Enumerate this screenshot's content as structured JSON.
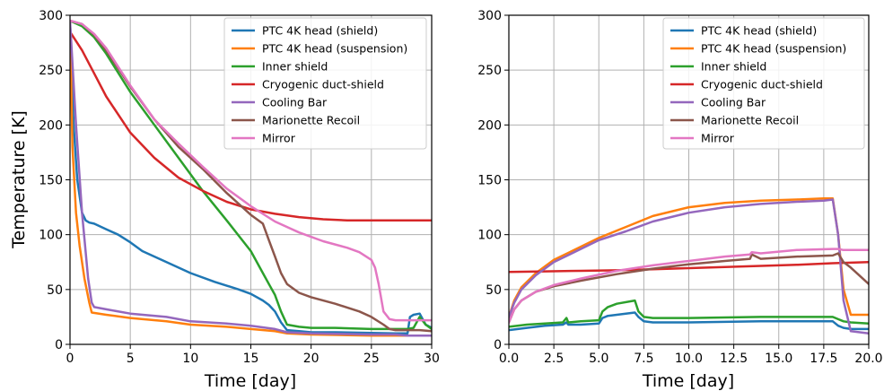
{
  "chart_data": [
    {
      "type": "line",
      "xlabel": "Time [day]",
      "ylabel": "Temperature [K]",
      "xlim": [
        0,
        30
      ],
      "ylim": [
        0,
        300
      ],
      "xticks": [
        0,
        5,
        10,
        15,
        20,
        25,
        30
      ],
      "yticks": [
        0,
        50,
        100,
        150,
        200,
        250,
        300
      ],
      "xtick_labels": [
        "0",
        "5",
        "10",
        "15",
        "20",
        "25",
        "30"
      ],
      "ytick_labels": [
        "0",
        "50",
        "100",
        "150",
        "200",
        "250",
        "300"
      ],
      "grid": true,
      "legend_position": "top-right",
      "series": [
        {
          "name": "PTC 4K head (shield)",
          "color": "#1f77b4",
          "x": [
            0,
            0.3,
            0.6,
            1,
            1.3,
            1.6,
            2,
            3,
            4,
            5,
            6,
            8,
            10,
            12,
            14,
            15,
            16,
            16.5,
            17,
            17.5,
            18,
            19,
            20,
            22,
            25,
            27,
            28,
            28.2,
            28.5,
            29,
            29.5,
            30
          ],
          "y": [
            295,
            200,
            150,
            120,
            113,
            111,
            110,
            105,
            100,
            93,
            85,
            75,
            65,
            57,
            50,
            46,
            40,
            36,
            30,
            20,
            13,
            12,
            11,
            11,
            10.5,
            10,
            10,
            25,
            27,
            28,
            18,
            15
          ]
        },
        {
          "name": "PTC 4K head (suspension)",
          "color": "#ff7f0e",
          "x": [
            0,
            0.2,
            0.5,
            0.8,
            1.2,
            1.6,
            1.8,
            3,
            5,
            8,
            10,
            13,
            15,
            17,
            18,
            20,
            25,
            28,
            29,
            30
          ],
          "y": [
            295,
            180,
            120,
            90,
            60,
            38,
            29,
            27,
            24,
            21,
            18,
            16,
            14,
            12,
            10,
            9,
            8,
            8,
            8,
            8
          ]
        },
        {
          "name": "Inner shield",
          "color": "#2ca02c",
          "x": [
            0,
            1,
            2,
            3,
            5,
            7,
            9,
            11,
            13,
            15,
            16,
            16.5,
            17,
            17.5,
            18,
            19,
            20,
            22,
            25,
            28,
            28.5,
            29,
            29.5,
            30
          ],
          "y": [
            295,
            290,
            280,
            265,
            230,
            200,
            170,
            140,
            113,
            85,
            65,
            55,
            45,
            30,
            18,
            16,
            15,
            15,
            14,
            14,
            15,
            25,
            18,
            14
          ]
        },
        {
          "name": "Cryogenic duct-shield",
          "color": "#d62728",
          "x": [
            0,
            1,
            2,
            3,
            5,
            7,
            9,
            11,
            13,
            15,
            17,
            19,
            21,
            23,
            25,
            27,
            30
          ],
          "y": [
            285,
            268,
            247,
            226,
            193,
            170,
            152,
            140,
            130,
            123,
            119,
            116,
            114,
            113,
            113,
            113,
            113
          ]
        },
        {
          "name": "Cooling Bar",
          "color": "#9467bd",
          "x": [
            0,
            0.5,
            1,
            1.5,
            1.8,
            2,
            3,
            5,
            8,
            10,
            13,
            15,
            17,
            18,
            20,
            25,
            27,
            28,
            29,
            30
          ],
          "y": [
            295,
            200,
            120,
            60,
            38,
            34,
            32,
            28,
            25,
            21,
            19,
            17,
            14,
            11,
            10,
            9,
            9,
            8,
            8,
            8
          ]
        },
        {
          "name": "Marionette Recoil",
          "color": "#8c564b",
          "x": [
            0,
            1,
            2,
            3,
            5,
            7,
            9,
            11,
            13,
            15,
            16,
            16.5,
            17,
            17.5,
            18,
            19,
            20,
            22,
            24,
            25,
            26,
            26.5,
            27,
            28,
            29,
            30
          ],
          "y": [
            295,
            292,
            282,
            268,
            235,
            205,
            180,
            160,
            138,
            118,
            110,
            95,
            80,
            65,
            55,
            47,
            43,
            37,
            30,
            25,
            18,
            14,
            13,
            13,
            13,
            12
          ]
        },
        {
          "name": "Mirror",
          "color": "#e377c2",
          "x": [
            0,
            1,
            2,
            3,
            5,
            7,
            9,
            11,
            13,
            15,
            17,
            19,
            21,
            23,
            24,
            25,
            25.3,
            25.6,
            26,
            26.5,
            27,
            28,
            30
          ],
          "y": [
            295,
            292,
            283,
            270,
            236,
            205,
            183,
            162,
            142,
            126,
            112,
            102,
            94,
            88,
            84,
            77,
            70,
            55,
            30,
            23,
            22,
            22,
            22
          ]
        }
      ]
    },
    {
      "type": "line",
      "xlabel": "Time [day]",
      "ylabel": "",
      "xlim": [
        0,
        20
      ],
      "ylim": [
        0,
        300
      ],
      "xticks": [
        0,
        2.5,
        5,
        7.5,
        10,
        12.5,
        15,
        17.5,
        20
      ],
      "yticks": [
        0,
        50,
        100,
        150,
        200,
        250,
        300
      ],
      "xtick_labels": [
        "0.0",
        "2.5",
        "5.0",
        "7.5",
        "10.0",
        "12.5",
        "15.0",
        "17.5",
        "20.0"
      ],
      "ytick_labels": [
        "0",
        "50",
        "100",
        "150",
        "200",
        "250",
        "300"
      ],
      "grid": true,
      "legend_position": "top-right",
      "series": [
        {
          "name": "PTC 4K head (shield)",
          "color": "#1f77b4",
          "x": [
            0,
            1,
            2,
            3,
            3.2,
            3.3,
            4,
            5,
            5.2,
            5.5,
            6,
            7,
            7.2,
            7.5,
            8,
            10,
            12,
            14,
            16,
            18,
            18.3,
            18.6,
            19,
            20
          ],
          "y": [
            13,
            15,
            17,
            18,
            20,
            18,
            18,
            19,
            24,
            26,
            27,
            29,
            25,
            21,
            20,
            20,
            20.5,
            21,
            21,
            21,
            17,
            15,
            14,
            14
          ]
        },
        {
          "name": "PTC 4K head (suspension)",
          "color": "#ff7f0e",
          "x": [
            0,
            0.3,
            0.7,
            1.5,
            2.5,
            3.5,
            5,
            6.5,
            8,
            10,
            12,
            14,
            16,
            17.5,
            18,
            18.3,
            18.6,
            19,
            20
          ],
          "y": [
            25,
            40,
            52,
            65,
            77,
            85,
            97,
            107,
            117,
            125,
            129,
            131,
            132,
            133,
            133,
            100,
            50,
            27,
            27
          ]
        },
        {
          "name": "Inner shield",
          "color": "#2ca02c",
          "x": [
            0,
            1,
            2,
            3,
            3.2,
            3.3,
            4,
            5,
            5.2,
            5.5,
            6,
            7,
            7.2,
            7.5,
            8,
            10,
            12,
            14,
            16,
            18,
            18.3,
            18.6,
            19,
            20
          ],
          "y": [
            16,
            18,
            19,
            20,
            24,
            20,
            21,
            22,
            30,
            34,
            37,
            40,
            30,
            25,
            24,
            24,
            24.5,
            25,
            25,
            25,
            23,
            21,
            20,
            19
          ]
        },
        {
          "name": "Cryogenic duct-shield",
          "color": "#d62728",
          "x": [
            0,
            2,
            4,
            6,
            8,
            10,
            12,
            14,
            16,
            18,
            20
          ],
          "y": [
            66,
            66.5,
            67,
            67.5,
            68.5,
            69.5,
            70.5,
            71.5,
            72.5,
            74,
            75
          ]
        },
        {
          "name": "Cooling Bar",
          "color": "#9467bd",
          "x": [
            0,
            0.3,
            0.7,
            1.5,
            2.5,
            3.5,
            5,
            6.5,
            8,
            10,
            12,
            14,
            16,
            17.5,
            18,
            18.3,
            18.6,
            19,
            20
          ],
          "y": [
            25,
            38,
            50,
            63,
            75,
            83,
            95,
            103,
            112,
            120,
            125,
            128,
            130,
            131,
            132,
            100,
            40,
            12,
            10
          ]
        },
        {
          "name": "Marionette Recoil",
          "color": "#8c564b",
          "x": [
            0,
            0.3,
            0.7,
            1.5,
            2.5,
            4,
            6,
            8,
            10,
            12,
            13.4,
            13.5,
            14,
            16,
            18,
            18.3,
            18.6,
            19,
            20
          ],
          "y": [
            20,
            32,
            40,
            48,
            53,
            58,
            64,
            69,
            73,
            76,
            78,
            82,
            78,
            80,
            81,
            83,
            75,
            70,
            55
          ]
        },
        {
          "name": "Mirror",
          "color": "#e377c2",
          "x": [
            0,
            0.3,
            0.7,
            1.5,
            2.5,
            4,
            6,
            8,
            10,
            12,
            13.4,
            13.5,
            14,
            16,
            18,
            18.3,
            18.6,
            19,
            20
          ],
          "y": [
            20,
            32,
            40,
            48,
            54,
            60,
            67,
            72,
            76,
            80,
            82,
            84,
            83,
            86,
            87,
            87,
            86,
            86,
            86
          ]
        }
      ]
    }
  ]
}
